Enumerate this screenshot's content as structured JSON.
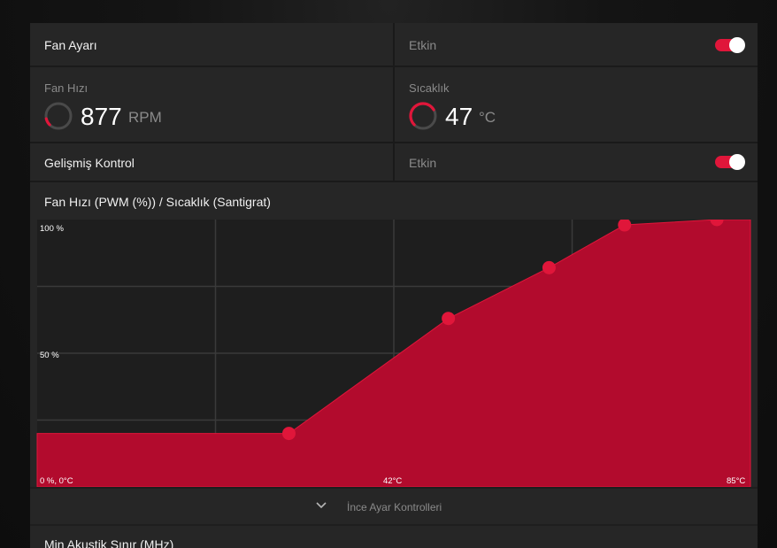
{
  "fan_tuning": {
    "label": "Fan Ayarı",
    "status": "Etkin",
    "enabled": true
  },
  "fan_speed": {
    "label": "Fan Hızı",
    "value": "877",
    "unit": "RPM",
    "gauge_fraction": 0.25
  },
  "temperature": {
    "label": "Sıcaklık",
    "value": "47",
    "unit": "°C",
    "gauge_fraction": 0.47
  },
  "advanced_control": {
    "label": "Gelişmiş Kontrol",
    "status": "Etkin",
    "enabled": true
  },
  "chart_title": "Fan Hızı (PWM (%)) / Sıcaklık (Santigrat)",
  "chart_data": {
    "type": "area",
    "x": [
      0,
      30,
      49,
      61,
      70,
      81
    ],
    "y": [
      20,
      20,
      63,
      82,
      98,
      100
    ],
    "xlim": [
      0,
      85
    ],
    "ylim": [
      0,
      100
    ],
    "y_tick_labels": [
      "100 %",
      "50 %"
    ],
    "origin_label": "0 %, 0°C",
    "x_tick_labels": [
      "42°C",
      "85°C"
    ],
    "grid": true
  },
  "fine_tuning": {
    "label": "İnce Ayar Kontrolleri"
  },
  "min_acoustic": {
    "label": "Min Akustik Sınır (MHz)"
  },
  "colors": {
    "accent": "#e0163a",
    "fill": "#b20b2d",
    "panel": "#262626"
  },
  "icons": {
    "expand": "chevron-down-icon"
  }
}
